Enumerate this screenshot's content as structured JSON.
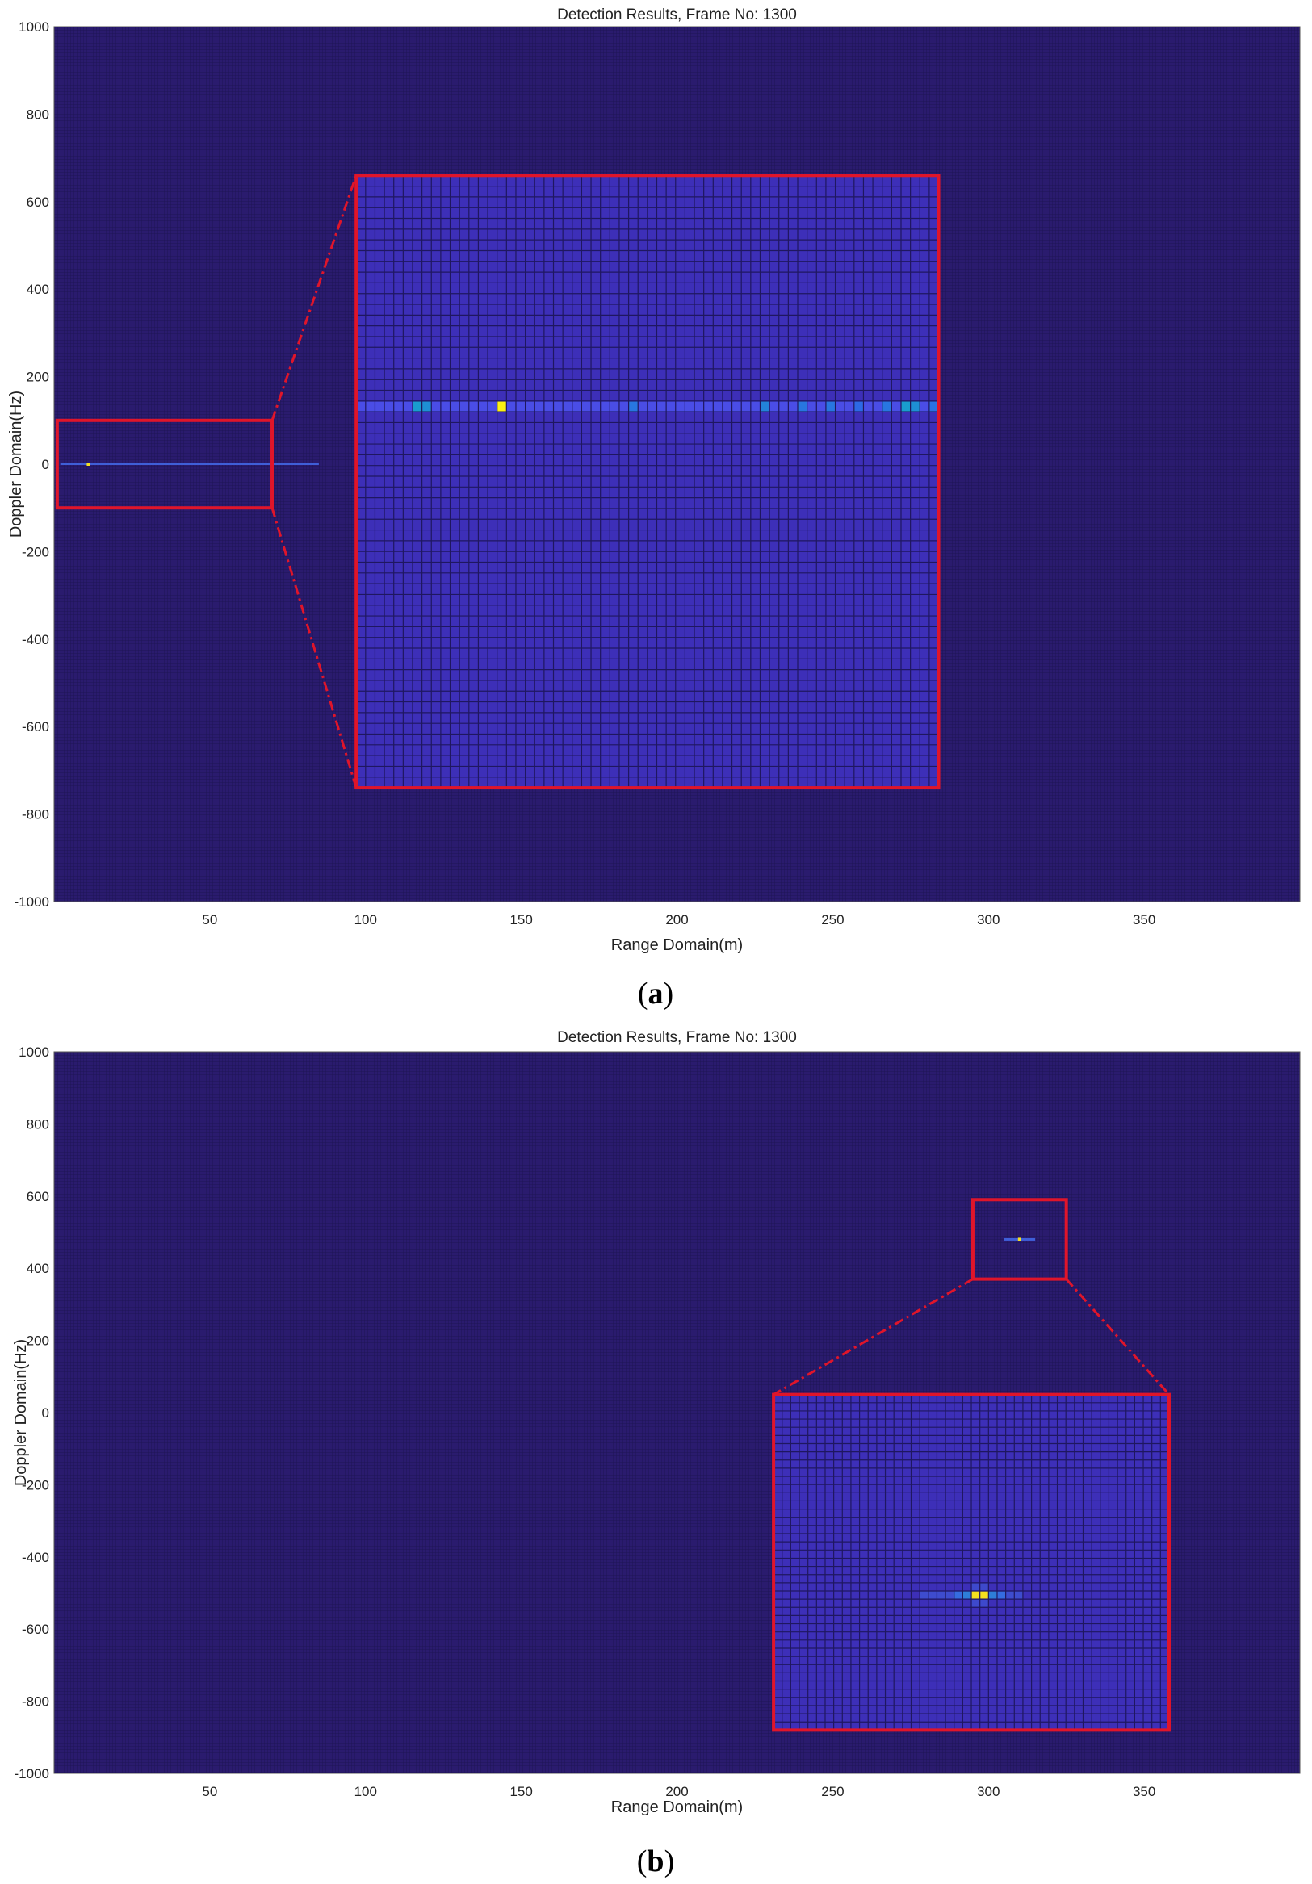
{
  "chart_data": [
    {
      "type": "heatmap",
      "panel": "(a)",
      "panel_letter": "a",
      "title": "Detection Results, Frame No: 1300",
      "xlabel": "Range Domain(m)",
      "ylabel": "Doppler Domain(Hz)",
      "xlim": [
        0,
        400
      ],
      "ylim": [
        -1000,
        1000
      ],
      "xticks": [
        50,
        100,
        150,
        200,
        250,
        300,
        350
      ],
      "yticks": [
        1000,
        800,
        600,
        400,
        200,
        0,
        -200,
        -400,
        -600,
        -800,
        -1000
      ],
      "background_color": "#2a1b6e",
      "target_row_doppler": 0,
      "target_range_span": [
        2,
        85
      ],
      "peak": {
        "range": 11,
        "doppler": 0
      },
      "zoom_source_region": {
        "range": [
          1,
          70
        ],
        "doppler": [
          -100,
          100
        ]
      },
      "zoom_inset_region": {
        "range": [
          97,
          284
        ],
        "doppler": [
          -740,
          660
        ]
      },
      "inset_cells": {
        "cols": 62,
        "rows": 57,
        "target_row": 21
      },
      "inset_highlights": [
        {
          "col": 6,
          "intensity": 0.45
        },
        {
          "col": 7,
          "intensity": 0.4
        },
        {
          "col": 15,
          "intensity": 1.0
        },
        {
          "col": 29,
          "intensity": 0.3
        },
        {
          "col": 43,
          "intensity": 0.35
        },
        {
          "col": 47,
          "intensity": 0.3
        },
        {
          "col": 50,
          "intensity": 0.3
        },
        {
          "col": 53,
          "intensity": 0.25
        },
        {
          "col": 58,
          "intensity": 0.3
        },
        {
          "col": 61,
          "intensity": 0.28
        },
        {
          "col": 72,
          "intensity": 0.3
        },
        {
          "col": 75,
          "intensity": 0.45
        },
        {
          "col": 76,
          "intensity": 0.4
        }
      ]
    },
    {
      "type": "heatmap",
      "panel": "(b)",
      "panel_letter": "b",
      "title": "Detection Results, Frame No: 1300",
      "xlabel": "Range Domain(m)",
      "ylabel": "Doppler Domain(Hz)",
      "xlim": [
        0,
        400
      ],
      "ylim": [
        -1000,
        1000
      ],
      "xticks": [
        50,
        100,
        150,
        200,
        250,
        300,
        350
      ],
      "yticks": [
        1000,
        800,
        600,
        400,
        200,
        0,
        -200,
        -400,
        -600,
        -800,
        -1000
      ],
      "background_color": "#2a1b6e",
      "peak": {
        "range": 310,
        "doppler": 480
      },
      "zoom_source_region": {
        "range": [
          295,
          325
        ],
        "doppler": [
          370,
          590
        ]
      },
      "zoom_inset_region": {
        "range": [
          231,
          358
        ],
        "doppler": [
          -880,
          50
        ]
      },
      "inset_cells": {
        "cols": 46,
        "rows": 41,
        "target_row": 24
      },
      "inset_highlights": [
        {
          "col": 23,
          "intensity": 1.0
        },
        {
          "col": 24,
          "intensity": 1.0
        },
        {
          "col": 22,
          "intensity": 0.45
        },
        {
          "col": 25,
          "intensity": 0.45
        },
        {
          "col": 21,
          "intensity": 0.3
        },
        {
          "col": 26,
          "intensity": 0.3
        }
      ]
    }
  ]
}
